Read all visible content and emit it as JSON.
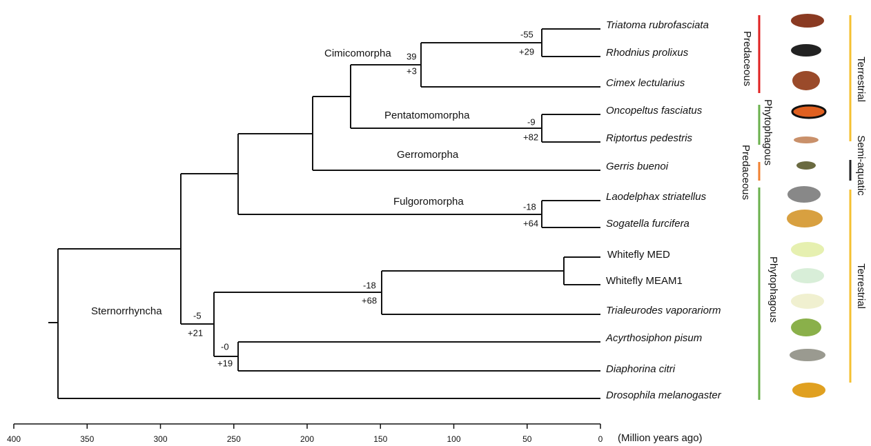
{
  "tree": {
    "leaves": [
      "Triatoma rubrofasciata",
      "Rhodnius prolixus",
      "Cimex lectularius",
      "Oncopeltus fasciatus",
      "Riptortus pedestris",
      "Gerris buenoi",
      "Laodelphax striatellus",
      "Sogatella furcifera",
      "Whitefly MED",
      "Whitefly MEAM1",
      "Trialeurodes vaporariorm",
      "Acyrthosiphon pisum",
      "Diaphorina citri",
      "Drosophila melanogaster"
    ],
    "clades": [
      "Cimicomorpha",
      "Pentatomomorpha",
      "Gerromorpha",
      "Fulgoromorpha",
      "Sternorrhyncha"
    ],
    "node_labels": [
      {
        "loss": "-55",
        "gain": "+29"
      },
      {
        "loss": "39",
        "gain": "+3"
      },
      {
        "loss": "-9",
        "gain": "+82"
      },
      {
        "loss": "-18",
        "gain": "+64"
      },
      {
        "loss": "-18",
        "gain": "+68"
      },
      {
        "loss": "-5",
        "gain": "+21"
      },
      {
        "loss": "-0",
        "gain": "+19"
      }
    ]
  },
  "diets": [
    "Predaceous",
    "Phytophagous",
    "Predaceous",
    "Phytophagous"
  ],
  "habitats": [
    "Terrestrial",
    "Semi-aquatic",
    "Terrestrial"
  ],
  "axis": {
    "ticks": [
      400,
      350,
      300,
      250,
      200,
      150,
      100,
      50,
      0
    ],
    "label": "(Million years ago)"
  }
}
